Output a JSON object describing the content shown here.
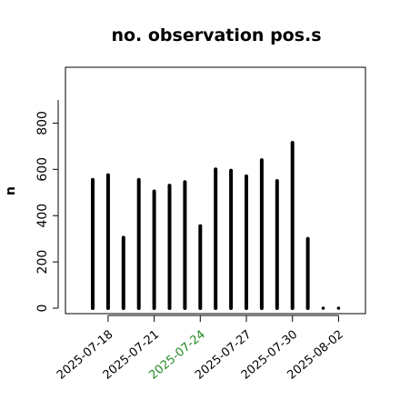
{
  "chart_data": {
    "type": "bar",
    "title": "no. observation pos.s",
    "ylabel": "n",
    "xlabel": "",
    "ylim": [
      0,
      900
    ],
    "yticks": [
      0,
      200,
      400,
      600,
      800
    ],
    "grid": false,
    "x": [
      "2025-07-17",
      "2025-07-18",
      "2025-07-19",
      "2025-07-20",
      "2025-07-21",
      "2025-07-22",
      "2025-07-23",
      "2025-07-24",
      "2025-07-25",
      "2025-07-26",
      "2025-07-27",
      "2025-07-28",
      "2025-07-29",
      "2025-07-30",
      "2025-07-31",
      "2025-08-01",
      "2025-08-02"
    ],
    "values": [
      555,
      575,
      305,
      555,
      505,
      530,
      545,
      355,
      600,
      595,
      570,
      640,
      550,
      715,
      300,
      0,
      0
    ],
    "xtick_labels": [
      {
        "date": "2025-07-18",
        "label": "2025-07-18",
        "color": "#000000"
      },
      {
        "date": "2025-07-21",
        "label": "2025-07-21",
        "color": "#000000"
      },
      {
        "date": "2025-07-24",
        "label": "2025-07-24",
        "color": "#228B22"
      },
      {
        "date": "2025-07-27",
        "label": "2025-07-27",
        "color": "#000000"
      },
      {
        "date": "2025-07-30",
        "label": "2025-07-30",
        "color": "#000000"
      },
      {
        "date": "2025-08-02",
        "label": "2025-08-02",
        "color": "#000000"
      }
    ]
  }
}
